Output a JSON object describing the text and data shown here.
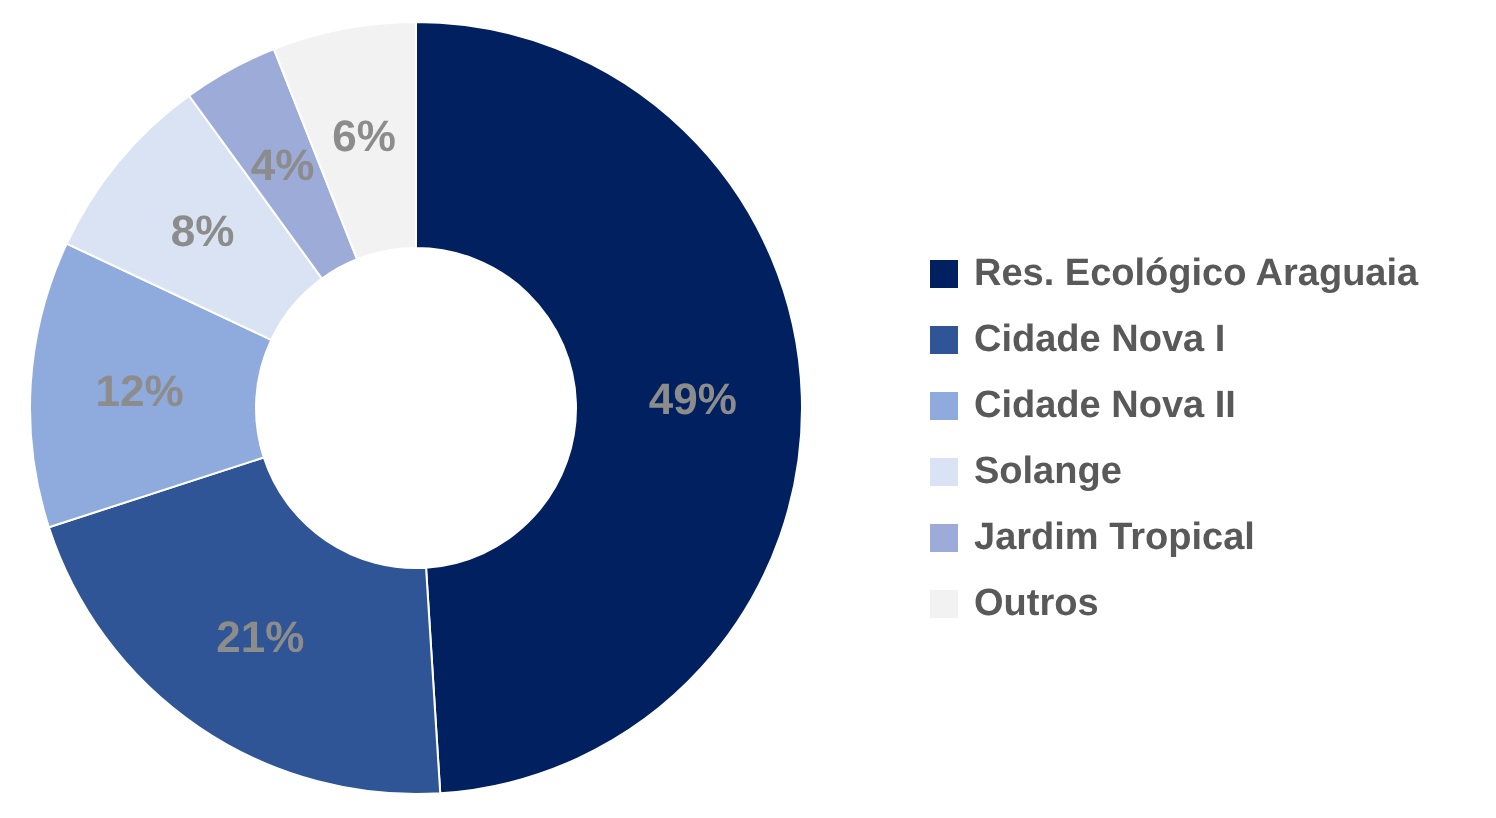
{
  "chart_data": {
    "type": "donut",
    "categories": [
      "Res. Ecológico Araguaia",
      "Cidade Nova I",
      "Cidade Nova II",
      "Solange",
      "Jardim Tropical",
      "Outros"
    ],
    "values": [
      49,
      21,
      12,
      8,
      4,
      6
    ],
    "value_labels": [
      "49%",
      "21%",
      "12%",
      "8%",
      "4%",
      "6%"
    ],
    "colors": [
      "#002060",
      "#2f5597",
      "#8faadc",
      "#dae3f3",
      "#9dabd9",
      "#f2f2f2"
    ],
    "legend": "right"
  }
}
